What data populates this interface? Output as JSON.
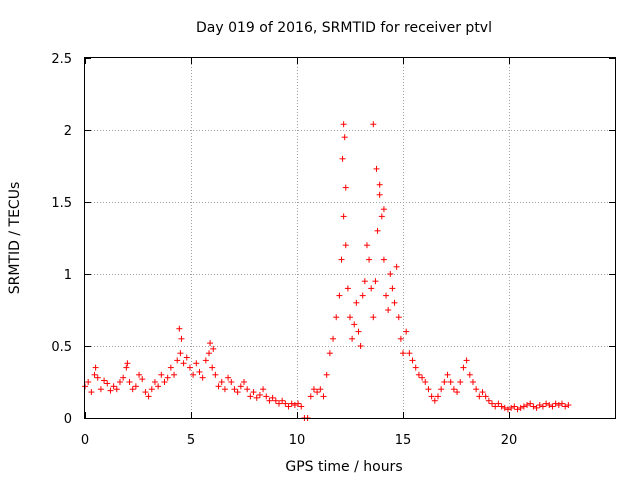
{
  "chart_data": {
    "type": "scatter",
    "title": "Day 019 of 2016, SRMTID for receiver ptvl",
    "xlabel": "GPS time / hours",
    "ylabel": "SRMTID / TECUs",
    "xlim": [
      0,
      25
    ],
    "ylim": [
      0,
      2.5
    ],
    "x_ticks": [
      0,
      5,
      10,
      15,
      20
    ],
    "x_tick_labels": [
      "0",
      "5",
      "10",
      "15",
      "20"
    ],
    "y_ticks": [
      0,
      0.5,
      1,
      1.5,
      2,
      2.5
    ],
    "y_tick_labels": [
      "0",
      "0.5",
      "1",
      "1.5",
      "2",
      "2.5"
    ],
    "grid": true,
    "marker": "+",
    "color": "#ff0000",
    "series": [
      {
        "name": "SRMTID",
        "x": [
          0.0,
          0.15,
          0.3,
          0.45,
          0.6,
          0.75,
          0.9,
          1.05,
          1.2,
          1.35,
          1.5,
          1.65,
          1.8,
          1.95,
          2.1,
          2.25,
          2.4,
          2.55,
          2.7,
          2.85,
          3.0,
          3.15,
          3.3,
          3.45,
          3.6,
          3.75,
          3.9,
          4.05,
          4.2,
          4.35,
          4.5,
          4.65,
          4.8,
          4.95,
          5.1,
          5.25,
          5.4,
          5.55,
          5.7,
          5.85,
          6.0,
          6.15,
          6.3,
          6.45,
          6.6,
          6.75,
          6.9,
          7.05,
          7.2,
          7.35,
          7.5,
          7.65,
          7.8,
          7.95,
          8.1,
          8.25,
          8.4,
          8.55,
          8.7,
          8.85,
          9.0,
          9.15,
          9.3,
          9.45,
          9.6,
          9.75,
          9.9,
          10.05,
          10.2,
          10.35,
          10.5,
          10.65,
          10.8,
          10.95,
          11.1,
          11.25,
          11.4,
          11.55,
          11.7,
          11.85,
          12.0,
          12.1,
          12.2,
          12.3,
          12.4,
          12.5,
          12.6,
          12.7,
          12.8,
          12.9,
          13.0,
          13.1,
          13.2,
          13.3,
          13.4,
          13.5,
          13.6,
          13.7,
          13.8,
          13.9,
          14.0,
          14.1,
          14.2,
          14.3,
          14.4,
          14.5,
          14.6,
          14.7,
          14.8,
          14.9,
          15.0,
          15.15,
          15.3,
          15.45,
          15.6,
          15.75,
          15.9,
          16.05,
          16.2,
          16.35,
          16.5,
          16.65,
          16.8,
          16.95,
          17.1,
          17.25,
          17.4,
          17.55,
          17.7,
          17.85,
          18.0,
          18.15,
          18.3,
          18.45,
          18.6,
          18.75,
          18.9,
          19.05,
          19.2,
          19.35,
          19.5,
          19.65,
          19.8,
          19.95,
          20.1,
          20.25,
          20.4,
          20.55,
          20.7,
          20.85,
          21.0,
          21.15,
          21.3,
          21.45,
          21.6,
          21.75,
          21.9,
          22.05,
          22.2,
          22.35,
          22.5,
          22.65,
          22.8,
          12.2,
          12.25,
          13.6,
          13.75,
          12.15,
          12.3,
          13.9,
          14.1,
          4.45,
          4.55,
          5.9,
          6.05,
          2.0,
          0.5
        ],
        "y": [
          0.22,
          0.25,
          0.18,
          0.3,
          0.28,
          0.2,
          0.26,
          0.24,
          0.19,
          0.22,
          0.2,
          0.25,
          0.28,
          0.35,
          0.25,
          0.2,
          0.22,
          0.3,
          0.27,
          0.18,
          0.15,
          0.2,
          0.25,
          0.22,
          0.3,
          0.25,
          0.28,
          0.35,
          0.3,
          0.4,
          0.45,
          0.38,
          0.42,
          0.35,
          0.3,
          0.38,
          0.32,
          0.28,
          0.4,
          0.45,
          0.35,
          0.3,
          0.22,
          0.25,
          0.2,
          0.28,
          0.25,
          0.2,
          0.18,
          0.22,
          0.25,
          0.2,
          0.15,
          0.18,
          0.14,
          0.16,
          0.2,
          0.15,
          0.12,
          0.14,
          0.12,
          0.1,
          0.12,
          0.1,
          0.08,
          0.1,
          0.09,
          0.1,
          0.08,
          0.0,
          0.0,
          0.15,
          0.2,
          0.18,
          0.2,
          0.15,
          0.3,
          0.45,
          0.55,
          0.7,
          0.85,
          1.1,
          1.4,
          1.2,
          0.9,
          0.7,
          0.55,
          0.65,
          0.8,
          0.6,
          0.5,
          0.85,
          0.95,
          1.2,
          1.1,
          0.9,
          0.7,
          0.95,
          1.3,
          1.55,
          1.4,
          1.1,
          0.85,
          0.75,
          1.0,
          0.9,
          0.8,
          1.05,
          0.7,
          0.55,
          0.45,
          0.6,
          0.45,
          0.4,
          0.35,
          0.3,
          0.28,
          0.25,
          0.2,
          0.15,
          0.12,
          0.15,
          0.2,
          0.25,
          0.3,
          0.25,
          0.2,
          0.18,
          0.25,
          0.35,
          0.4,
          0.3,
          0.25,
          0.2,
          0.15,
          0.18,
          0.15,
          0.12,
          0.1,
          0.08,
          0.1,
          0.08,
          0.07,
          0.06,
          0.07,
          0.08,
          0.06,
          0.07,
          0.08,
          0.09,
          0.1,
          0.08,
          0.07,
          0.09,
          0.08,
          0.1,
          0.09,
          0.08,
          0.1,
          0.09,
          0.1,
          0.08,
          0.09,
          2.04,
          1.95,
          2.04,
          1.73,
          1.8,
          1.6,
          1.62,
          1.45,
          0.62,
          0.55,
          0.52,
          0.48,
          0.38,
          0.35
        ]
      }
    ]
  }
}
